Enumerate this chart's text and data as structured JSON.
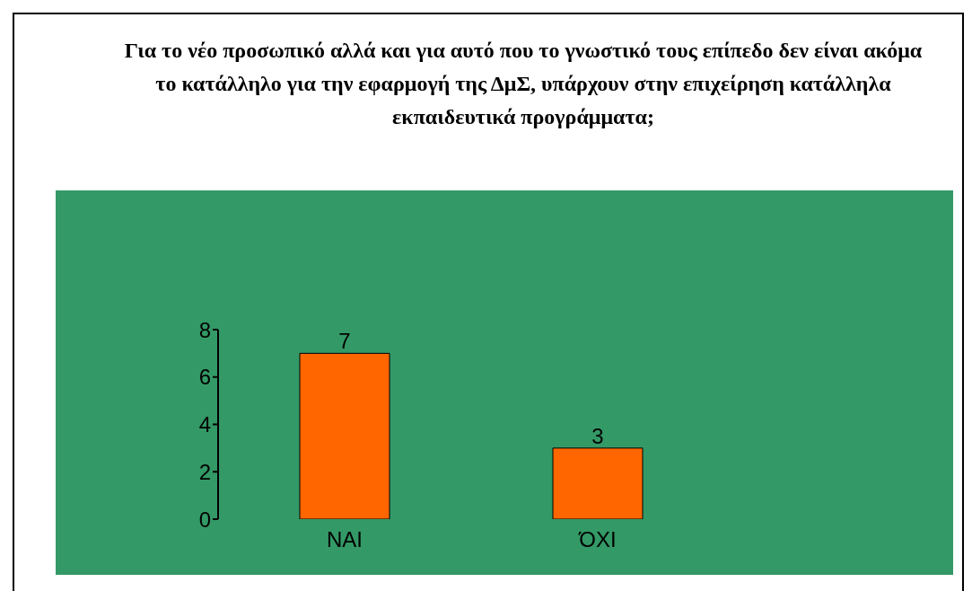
{
  "chart_data": {
    "type": "bar",
    "title": "Για το νέο προσωπικό αλλά και για αυτό που το γνωστικό τους επίπεδο δεν είναι ακόμα το κατάλληλο για την εφαρμογή της ΔμΣ, υπάρχουν στην επιχείρηση κατάλληλα εκπαιδευτικά προγράμματα;",
    "categories": [
      "ΝΑΙ",
      "ΌΧΙ"
    ],
    "values": [
      7,
      3
    ],
    "color": "#ff6600",
    "ylim": [
      0,
      8
    ],
    "yticks": [
      0,
      2,
      4,
      6,
      8
    ],
    "data_labels": true
  }
}
